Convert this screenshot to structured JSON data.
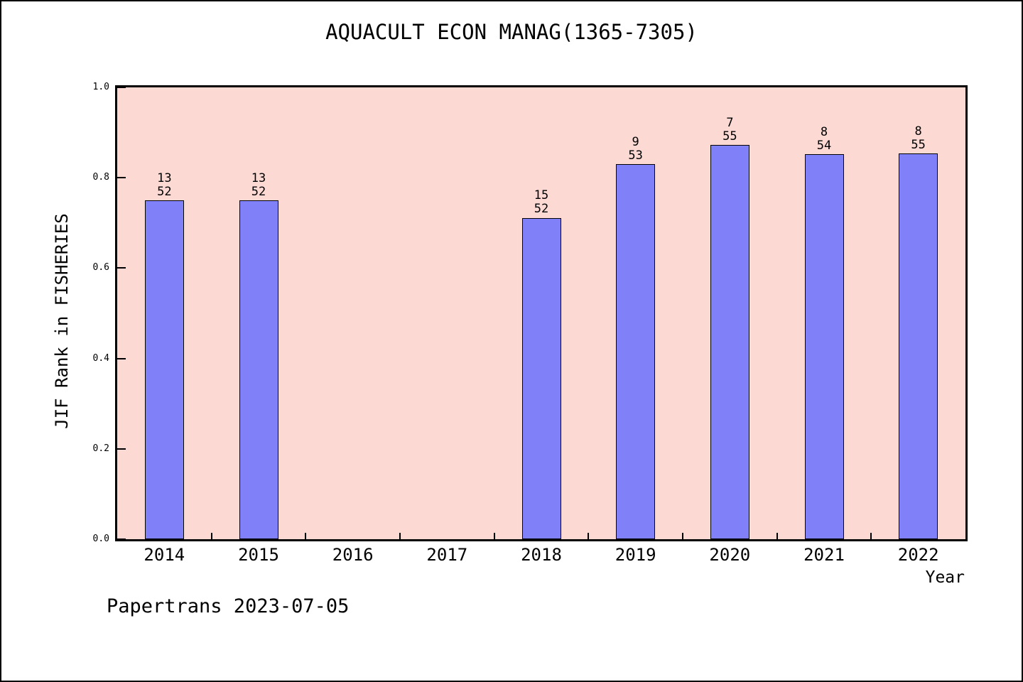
{
  "title": "AQUACULT ECON MANAG(1365-7305)",
  "footer": "Papertrans 2023-07-05",
  "colors": {
    "bar_fill": "#8080f8",
    "bar_border": "#000000",
    "plot_background": "#fdd9d4",
    "page_background": "#ffffff",
    "frame": "#000000"
  },
  "chart_data": {
    "type": "bar",
    "title": "AQUACULT ECON MANAG(1365-7305)",
    "xlabel": "Year",
    "ylabel": "JIF Rank in FISHERIES",
    "ylim": [
      0.0,
      1.0
    ],
    "ytick_labels": [
      "0.0",
      "0.2",
      "0.4",
      "0.6",
      "0.8",
      "1.0"
    ],
    "categories": [
      "2014",
      "2015",
      "2016",
      "2017",
      "2018",
      "2019",
      "2020",
      "2021",
      "2022"
    ],
    "grid": false,
    "legend_position": "none",
    "bars": [
      {
        "year": "2014",
        "rank": 13,
        "total": 52,
        "value": 0.75
      },
      {
        "year": "2015",
        "rank": 13,
        "total": 52,
        "value": 0.75
      },
      {
        "year": "2018",
        "rank": 15,
        "total": 52,
        "value": 0.7115
      },
      {
        "year": "2019",
        "rank": 9,
        "total": 53,
        "value": 0.8302
      },
      {
        "year": "2020",
        "rank": 7,
        "total": 55,
        "value": 0.8727
      },
      {
        "year": "2021",
        "rank": 8,
        "total": 54,
        "value": 0.8519
      },
      {
        "year": "2022",
        "rank": 8,
        "total": 55,
        "value": 0.8545
      }
    ],
    "annotation_note": "each bar labeled with rank (top line) over total journals (bottom line)"
  }
}
